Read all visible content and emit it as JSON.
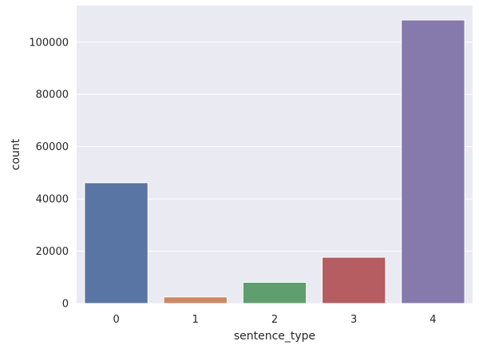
{
  "chart_data": {
    "type": "bar",
    "xlabel": "sentence_type",
    "ylabel": "count",
    "categories": [
      "0",
      "1",
      "2",
      "3",
      "4"
    ],
    "values": [
      46200,
      2500,
      8100,
      17700,
      108500
    ],
    "ylim": [
      0,
      114000
    ],
    "yticks": [
      0,
      20000,
      40000,
      60000,
      80000,
      100000
    ],
    "ytick_labels": [
      "0",
      "20000",
      "40000",
      "60000",
      "80000",
      "100000"
    ],
    "grid": true,
    "colors": [
      "#5875a4",
      "#cc8963",
      "#5f9e6e",
      "#b55d60",
      "#857aab"
    ],
    "background": "#eaeaf2",
    "grid_color": "#ffffff"
  }
}
